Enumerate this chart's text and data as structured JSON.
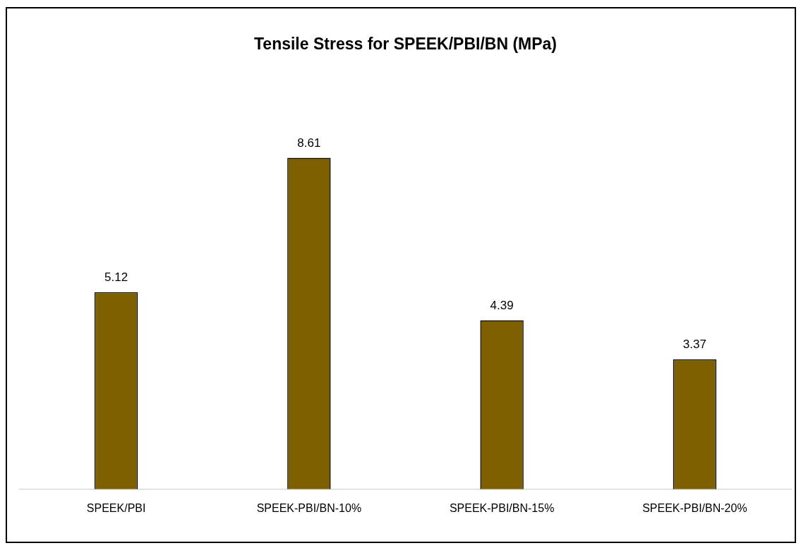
{
  "chart_data": {
    "type": "bar",
    "title": "Tensile Stress for SPEEK/PBI/BN (MPa)",
    "categories": [
      "SPEEK/PBI",
      "SPEEK-PBI/BN-10%",
      "SPEEK-PBI/BN-15%",
      "SPEEK-PBI/BN-20%"
    ],
    "values": [
      5.12,
      8.61,
      4.39,
      3.37
    ],
    "color": "#7f6000",
    "tick_labels": "x",
    "data_labels": true,
    "grid": false,
    "legend": false
  }
}
